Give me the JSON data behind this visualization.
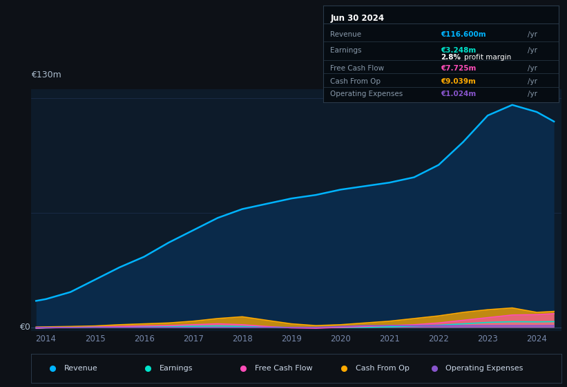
{
  "background_color": "#0d1117",
  "plot_bg_color": "#0d1b2a",
  "years": [
    2013.8,
    2014.0,
    2014.5,
    2015.0,
    2015.5,
    2016.0,
    2016.5,
    2017.0,
    2017.5,
    2018.0,
    2018.5,
    2019.0,
    2019.5,
    2020.0,
    2020.5,
    2021.0,
    2021.5,
    2022.0,
    2022.5,
    2023.0,
    2023.5,
    2024.0,
    2024.35
  ],
  "revenue": [
    15,
    16,
    20,
    27,
    34,
    40,
    48,
    55,
    62,
    67,
    70,
    73,
    75,
    78,
    80,
    82,
    85,
    92,
    105,
    120,
    126,
    122,
    116.6
  ],
  "earnings": [
    -0.5,
    -0.3,
    0.0,
    0.2,
    0.3,
    0.4,
    0.5,
    0.6,
    0.8,
    0.5,
    0.2,
    -0.1,
    -0.2,
    -0.1,
    0.0,
    0.3,
    0.8,
    1.2,
    2.0,
    2.8,
    3.2,
    3.1,
    3.248
  ],
  "free_cash_flow": [
    -0.5,
    -0.3,
    -0.1,
    0.2,
    0.5,
    0.8,
    1.0,
    1.5,
    2.0,
    1.5,
    0.5,
    -0.3,
    -0.5,
    0.0,
    0.5,
    1.0,
    1.5,
    2.5,
    4.0,
    5.5,
    7.0,
    7.2,
    7.725
  ],
  "cash_from_op": [
    0.2,
    0.3,
    0.5,
    0.8,
    1.5,
    2.0,
    2.5,
    3.5,
    5.0,
    6.0,
    4.0,
    2.0,
    1.0,
    1.5,
    2.5,
    3.5,
    5.0,
    6.5,
    8.5,
    10.0,
    11.0,
    8.5,
    9.039
  ],
  "operating_expenses": [
    0,
    0,
    0,
    0,
    0,
    0,
    0,
    0,
    0,
    0,
    0,
    0,
    0,
    0.5,
    1.0,
    1.0,
    1.0,
    1.0,
    1.0,
    1.0,
    1.0,
    1.0,
    1.024
  ],
  "revenue_color": "#00b4ff",
  "revenue_fill_color": "#0a2a4a",
  "earnings_color": "#00e5cc",
  "free_cash_flow_color": "#ff4db8",
  "cash_from_op_color": "#ffaa00",
  "operating_expenses_color": "#8855cc",
  "grid_line_color": "#1e3050",
  "zero_line_color": "#2a4060",
  "y_label_top": "€130m",
  "y_label_zero": "€0",
  "x_ticks": [
    2014,
    2015,
    2016,
    2017,
    2018,
    2019,
    2020,
    2021,
    2022,
    2023,
    2024
  ],
  "ylim_min": -2,
  "ylim_max": 135,
  "xlim_min": 2013.7,
  "xlim_max": 2024.5,
  "info_box": {
    "title": "Jun 30 2024",
    "revenue_label": "Revenue",
    "revenue_value": "€116.600m",
    "revenue_color": "#00b4ff",
    "earnings_label": "Earnings",
    "earnings_value": "€3.248m",
    "earnings_color": "#00e5cc",
    "profit_margin": "2.8%",
    "fcf_label": "Free Cash Flow",
    "fcf_value": "€7.725m",
    "fcf_color": "#ff4db8",
    "cash_label": "Cash From Op",
    "cash_value": "€9.039m",
    "cash_color": "#ffaa00",
    "opex_label": "Operating Expenses",
    "opex_value": "€1.024m",
    "opex_color": "#8855cc"
  },
  "legend_items": [
    "Revenue",
    "Earnings",
    "Free Cash Flow",
    "Cash From Op",
    "Operating Expenses"
  ],
  "legend_colors": [
    "#00b4ff",
    "#00e5cc",
    "#ff4db8",
    "#ffaa00",
    "#8855cc"
  ]
}
